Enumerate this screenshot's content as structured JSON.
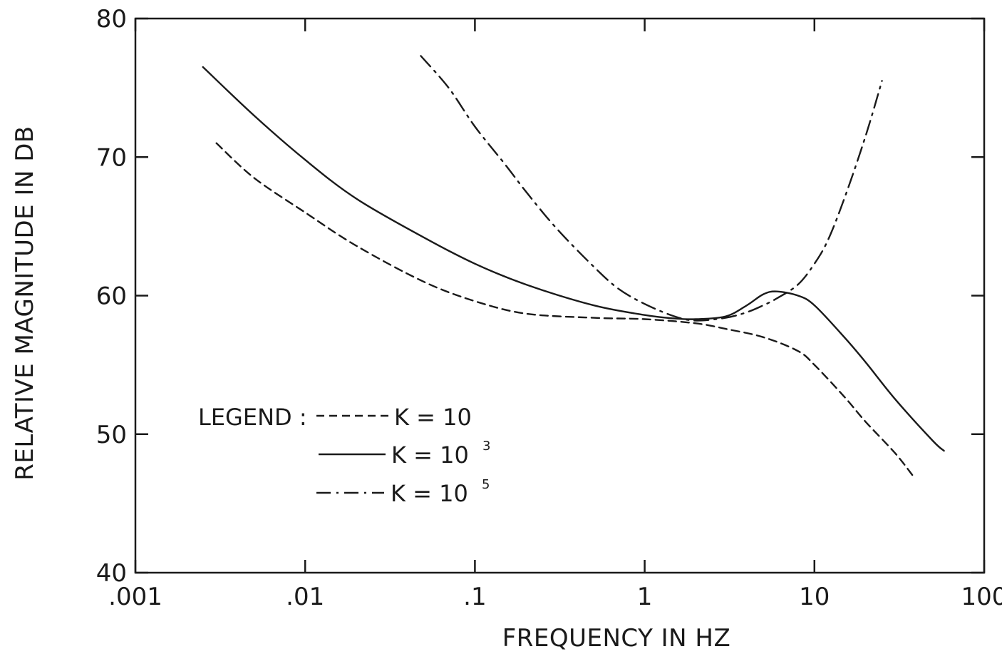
{
  "chart_data": {
    "type": "line",
    "title": "",
    "xlabel": "FREQUENCY IN HZ",
    "ylabel": "RELATIVE MAGNITUDE IN DB",
    "x_scale": "log",
    "xlim": [
      0.001,
      100
    ],
    "ylim": [
      40,
      80
    ],
    "x_tick_values": [
      0.001,
      0.01,
      0.1,
      1,
      10,
      100
    ],
    "x_tick_labels": [
      ".001",
      ".01",
      ".1",
      "1",
      "10",
      "100"
    ],
    "y_tick_values": [
      40,
      50,
      60,
      70,
      80
    ],
    "y_tick_labels": [
      "40",
      "50",
      "60",
      "70",
      "80"
    ],
    "grid": false,
    "legend_position": "lower-left",
    "legend_title": "LEGEND :",
    "line_color": "#1a1a1a",
    "series": [
      {
        "name": "K = 10",
        "label_base": "K = 10",
        "label_exp": "",
        "dash": "dashed",
        "x": [
          0.003,
          0.005,
          0.01,
          0.02,
          0.05,
          0.1,
          0.2,
          0.5,
          1,
          2,
          3,
          5,
          8,
          10,
          15,
          20,
          30,
          38
        ],
        "y": [
          71,
          68.5,
          66,
          63.6,
          61,
          59.6,
          58.7,
          58.4,
          58.3,
          58,
          57.6,
          57,
          56,
          55,
          52.7,
          50.9,
          48.6,
          47
        ]
      },
      {
        "name": "K = 10^3",
        "label_base": "K = 10",
        "label_exp": "3",
        "dash": "solid",
        "x": [
          0.0025,
          0.005,
          0.01,
          0.02,
          0.05,
          0.1,
          0.2,
          0.5,
          1,
          1.5,
          2,
          3,
          4,
          5,
          6,
          8,
          10,
          15,
          20,
          30,
          50,
          58
        ],
        "y": [
          76.5,
          73,
          69.8,
          67,
          64.2,
          62.3,
          60.8,
          59.3,
          58.6,
          58.35,
          58.3,
          58.5,
          59.3,
          60.1,
          60.3,
          60,
          59.3,
          57,
          55.2,
          52.5,
          49.5,
          48.8
        ]
      },
      {
        "name": "K = 10^5",
        "label_base": "K = 10",
        "label_exp": "5",
        "dash": "dashdot",
        "x": [
          0.048,
          0.07,
          0.1,
          0.15,
          0.2,
          0.3,
          0.5,
          0.7,
          1,
          1.5,
          2,
          3,
          4,
          5,
          6,
          8,
          10,
          12,
          15,
          20,
          25
        ],
        "y": [
          77.3,
          75,
          72.2,
          69.5,
          67.5,
          64.9,
          62.1,
          60.5,
          59.4,
          58.5,
          58.2,
          58.4,
          58.8,
          59.3,
          59.8,
          60.8,
          62.3,
          64,
          67,
          71.5,
          75.5
        ]
      }
    ]
  }
}
